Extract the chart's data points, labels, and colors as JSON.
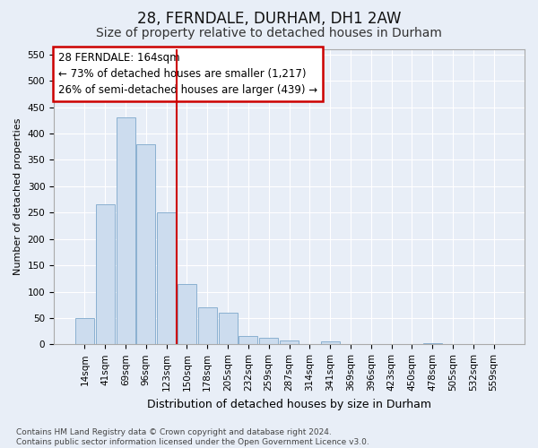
{
  "title1": "28, FERNDALE, DURHAM, DH1 2AW",
  "title2": "Size of property relative to detached houses in Durham",
  "xlabel": "Distribution of detached houses by size in Durham",
  "ylabel": "Number of detached properties",
  "categories": [
    "14sqm",
    "41sqm",
    "69sqm",
    "96sqm",
    "123sqm",
    "150sqm",
    "178sqm",
    "205sqm",
    "232sqm",
    "259sqm",
    "287sqm",
    "314sqm",
    "341sqm",
    "369sqm",
    "396sqm",
    "423sqm",
    "450sqm",
    "478sqm",
    "505sqm",
    "532sqm",
    "559sqm"
  ],
  "values": [
    50,
    265,
    430,
    380,
    250,
    115,
    70,
    60,
    15,
    12,
    8,
    0,
    5,
    0,
    0,
    0,
    0,
    2,
    0,
    0,
    0
  ],
  "bar_color": "#ccdcee",
  "bar_edgecolor": "#8ab0d0",
  "vline_x": 4.5,
  "vline_color": "#cc0000",
  "annotation_line1": "28 FERNDALE: 164sqm",
  "annotation_line2": "← 73% of detached houses are smaller (1,217)",
  "annotation_line3": "26% of semi-detached houses are larger (439) →",
  "annotation_box_color": "#ffffff",
  "annotation_box_edgecolor": "#cc0000",
  "ylim": [
    0,
    560
  ],
  "yticks": [
    0,
    50,
    100,
    150,
    200,
    250,
    300,
    350,
    400,
    450,
    500,
    550
  ],
  "footer": "Contains HM Land Registry data © Crown copyright and database right 2024.\nContains public sector information licensed under the Open Government Licence v3.0.",
  "title1_fontsize": 12,
  "title2_fontsize": 10,
  "xlabel_fontsize": 9,
  "ylabel_fontsize": 8,
  "tick_fontsize": 7.5,
  "footer_fontsize": 6.5,
  "annotation_fontsize": 8.5,
  "bg_color": "#e8eef7",
  "grid_color": "#ffffff",
  "spine_color": "#aaaaaa"
}
